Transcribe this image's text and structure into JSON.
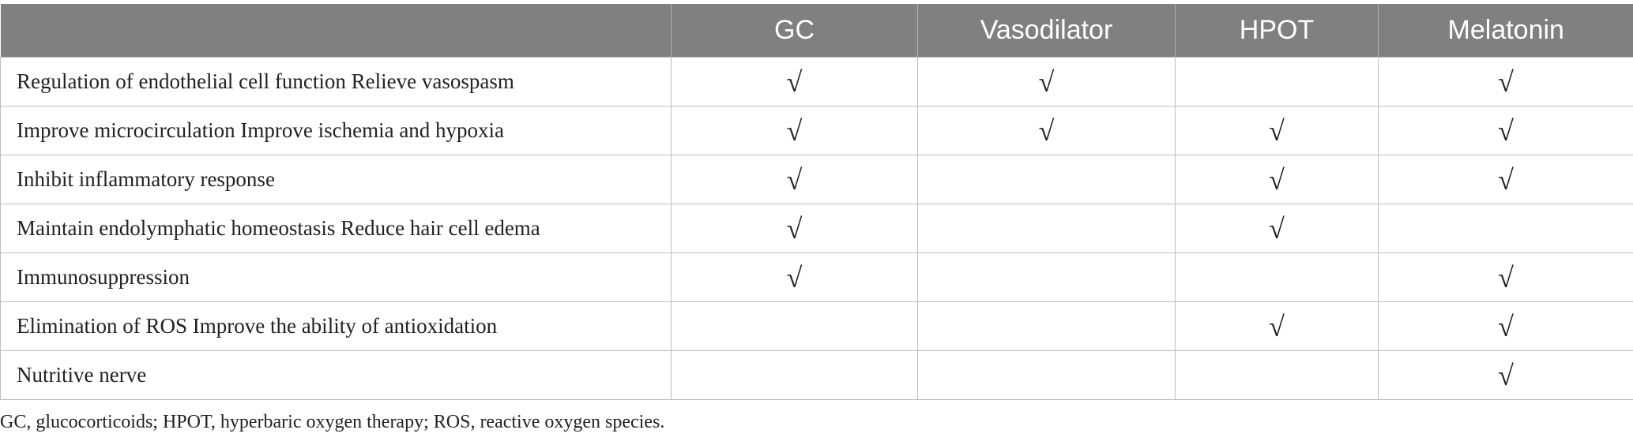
{
  "table": {
    "columns": [
      "",
      "GC",
      "Vasodilator",
      "HPOT",
      "Melatonin"
    ],
    "rows": [
      {
        "label": "Regulation of endothelial cell function Relieve vasospasm",
        "cells": [
          "√",
          "√",
          "",
          "√"
        ]
      },
      {
        "label": "Improve microcirculation Improve ischemia and hypoxia",
        "cells": [
          "√",
          "√",
          "√",
          "√"
        ]
      },
      {
        "label": "Inhibit inflammatory response",
        "cells": [
          "√",
          "",
          "√",
          "√"
        ]
      },
      {
        "label": "Maintain endolymphatic homeostasis Reduce hair cell edema",
        "cells": [
          "√",
          "",
          "√",
          ""
        ]
      },
      {
        "label": "Immunosuppression",
        "cells": [
          "√",
          "",
          "",
          "√"
        ]
      },
      {
        "label": "Elimination of ROS Improve the ability of antioxidation",
        "cells": [
          "",
          "",
          "√",
          "√"
        ]
      },
      {
        "label": "Nutritive nerve",
        "cells": [
          "",
          "",
          "",
          "√"
        ]
      }
    ]
  },
  "footnote": "GC, glucocorticoids; HPOT, hyperbaric oxygen therapy; ROS, reactive oxygen species.",
  "colors": {
    "header_bg": "#808080",
    "header_text": "#ffffff",
    "grid": "#bdbdbd"
  }
}
